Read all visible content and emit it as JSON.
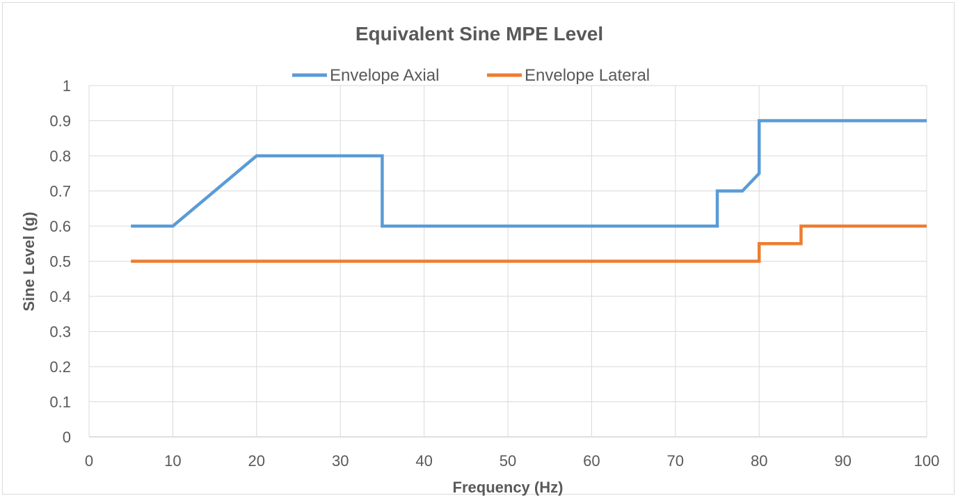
{
  "chart_data": {
    "type": "line",
    "title": "Equivalent Sine MPE Level",
    "xlabel": "Frequency (Hz)",
    "ylabel": "Sine Level (g)",
    "xlim": [
      0,
      100
    ],
    "ylim": [
      0,
      1
    ],
    "x_ticks": [
      "0",
      "10",
      "20",
      "30",
      "40",
      "50",
      "60",
      "70",
      "80",
      "90",
      "100"
    ],
    "y_ticks": [
      "0",
      "0.1",
      "0.2",
      "0.3",
      "0.4",
      "0.5",
      "0.6",
      "0.7",
      "0.8",
      "0.9",
      "1"
    ],
    "grid": true,
    "legend_position": "top",
    "series": [
      {
        "name": "Envelope Axial",
        "color": "#5b9bd5",
        "x": [
          5,
          10,
          20,
          35,
          35,
          75,
          75,
          78,
          80,
          80,
          100
        ],
        "y": [
          0.6,
          0.6,
          0.8,
          0.8,
          0.6,
          0.6,
          0.7,
          0.7,
          0.75,
          0.9,
          0.9
        ]
      },
      {
        "name": "Envelope Lateral",
        "color": "#ed7d31",
        "x": [
          5,
          80,
          80,
          85,
          85,
          100
        ],
        "y": [
          0.5,
          0.5,
          0.55,
          0.55,
          0.6,
          0.6
        ]
      }
    ]
  }
}
